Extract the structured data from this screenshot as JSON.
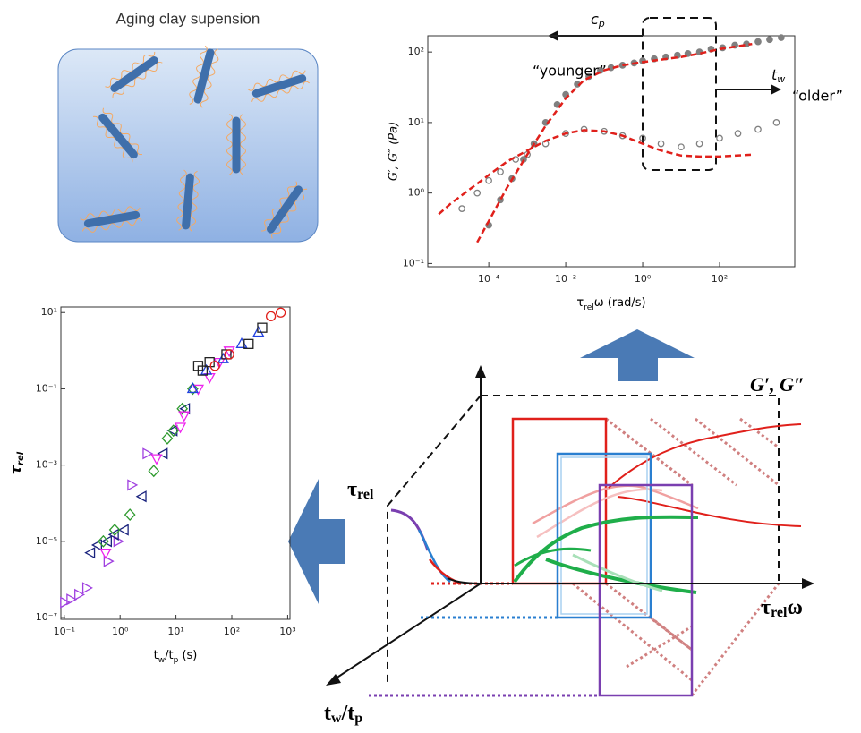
{
  "illustration": {
    "title": "Aging clay supension"
  },
  "chart_data": [
    {
      "type": "scatter",
      "log_x": true,
      "log_y": true,
      "xlim": [
        2.6e-06,
        9000
      ],
      "ylim": [
        0.09,
        170
      ],
      "xticks": [
        {
          "value": 0.0001,
          "label": "10⁻⁴"
        },
        {
          "value": 0.01,
          "label": "10⁻²"
        },
        {
          "value": 1,
          "label": "10⁰"
        },
        {
          "value": 100,
          "label": "10²"
        }
      ],
      "yticks": [
        {
          "value": 0.1,
          "label": "10⁻¹"
        },
        {
          "value": 1,
          "label": "10⁰"
        },
        {
          "value": 10,
          "label": "10¹"
        },
        {
          "value": 100,
          "label": "10²"
        }
      ],
      "x_label": [
        {
          "text": "τ"
        },
        {
          "sub": "rel"
        },
        {
          "text": "ω (rad/s)"
        }
      ],
      "y_label": "G′, G″ (Pa)",
      "annotations": {
        "concentration": [
          {
            "text": "c"
          },
          {
            "sub": "p"
          }
        ],
        "younger": "“younger”",
        "waiting_time": [
          {
            "text": "t"
          },
          {
            "sub": "w"
          }
        ],
        "older": "“older”"
      },
      "series": [
        {
          "color": "#808080",
          "marker": "circle-filled",
          "x": [
            0.0001,
            0.0002,
            0.0004,
            0.0008,
            0.0015,
            0.003,
            0.006,
            0.01,
            0.02,
            0.04,
            0.08,
            0.15,
            0.3,
            0.6,
            1,
            2,
            4,
            8,
            15,
            30,
            60,
            120,
            250,
            500,
            1000,
            2000,
            4000
          ],
          "values": [
            0.35,
            0.8,
            1.6,
            3,
            5,
            10,
            18,
            25,
            35,
            45,
            55,
            60,
            65,
            70,
            75,
            80,
            85,
            90,
            95,
            100,
            110,
            115,
            125,
            130,
            140,
            150,
            160
          ]
        },
        {
          "color": "#808080",
          "marker": "circle-open",
          "x": [
            2e-05,
            5e-05,
            0.0001,
            0.0002,
            0.0005,
            0.001,
            0.003,
            0.01,
            0.03,
            0.1,
            0.3,
            1,
            3,
            10,
            30,
            100,
            300,
            1000,
            3000
          ],
          "values": [
            0.6,
            1,
            1.5,
            2,
            3,
            3.5,
            5,
            7,
            8,
            7.5,
            6.5,
            6,
            5,
            4.5,
            5,
            6,
            7,
            8,
            10
          ]
        },
        {
          "color": "#e0201b",
          "line_style": "dashed",
          "x": [
            5e-05,
            0.0001,
            0.0003,
            0.001,
            0.003,
            0.01,
            0.03,
            0.1,
            0.3,
            1,
            3,
            10,
            30,
            100,
            700
          ],
          "values": [
            0.2,
            0.4,
            1.2,
            3.5,
            9,
            22,
            40,
            55,
            65,
            72,
            78,
            85,
            95,
            110,
            130
          ]
        },
        {
          "color": "#e0201b",
          "line_style": "dashed",
          "x": [
            5e-06,
            1e-05,
            3e-05,
            0.0001,
            0.0003,
            0.001,
            0.003,
            0.01,
            0.03,
            0.1,
            0.3,
            1,
            3,
            10,
            30,
            100,
            700
          ],
          "values": [
            0.5,
            0.7,
            1.1,
            1.8,
            2.8,
            4,
            5.5,
            7,
            7.8,
            7.5,
            6.5,
            5,
            4,
            3.4,
            3.3,
            3.3,
            3.5
          ]
        }
      ]
    },
    {
      "type": "scatter",
      "log_x": true,
      "log_y": true,
      "xlim": [
        0.087,
        1100
      ],
      "ylim": [
        9e-08,
        14
      ],
      "xticks": [
        {
          "value": 0.1,
          "label": "10⁻¹"
        },
        {
          "value": 1,
          "label": "10⁰"
        },
        {
          "value": 10,
          "label": "10¹"
        },
        {
          "value": 100,
          "label": "10²"
        },
        {
          "value": 1000,
          "label": "10³"
        }
      ],
      "yticks": [
        {
          "value": 1e-07,
          "label": "10⁻⁷"
        },
        {
          "value": 1e-05,
          "label": "10⁻⁵"
        },
        {
          "value": 0.001,
          "label": "10⁻³"
        },
        {
          "value": 0.1,
          "label": "10⁻¹"
        },
        {
          "value": 10,
          "label": "10¹"
        }
      ],
      "x_label": [
        {
          "text": "t"
        },
        {
          "sub": "w"
        },
        {
          "text": "/t"
        },
        {
          "sub": "p"
        },
        {
          "text": " (s)"
        }
      ],
      "y_label": [
        {
          "text": "τ"
        },
        {
          "sub": "rel"
        }
      ],
      "series": [
        {
          "color": "#a040e0",
          "marker": "triangle-right",
          "x": [
            0.1,
            0.13,
            0.18,
            0.25,
            0.6,
            0.9,
            1.6,
            3
          ],
          "values": [
            2.5e-07,
            3e-07,
            4e-07,
            6e-07,
            3e-06,
            1e-05,
            0.0003,
            0.002
          ]
        },
        {
          "color": "#1a237e",
          "marker": "triangle-left",
          "x": [
            0.3,
            0.4,
            0.6,
            0.8,
            1.2,
            2.5,
            6,
            9,
            15
          ],
          "values": [
            5e-06,
            8e-06,
            1e-05,
            1.5e-05,
            2e-05,
            0.00015,
            0.002,
            0.008,
            0.03
          ]
        },
        {
          "color": "#2e9a2e",
          "marker": "diamond",
          "x": [
            0.5,
            0.8,
            1.5,
            4,
            7,
            9,
            13,
            20
          ],
          "values": [
            1e-05,
            2e-05,
            5e-05,
            0.0007,
            0.005,
            0.008,
            0.03,
            0.1
          ]
        },
        {
          "color": "#ee22ee",
          "marker": "triangle-down",
          "x": [
            0.55,
            4.5,
            12,
            14,
            25,
            40,
            60,
            90
          ],
          "values": [
            5e-06,
            0.0015,
            0.01,
            0.02,
            0.1,
            0.2,
            0.5,
            1
          ]
        },
        {
          "color": "#2040e0",
          "marker": "triangle-up",
          "x": [
            20,
            35,
            70,
            150,
            300
          ],
          "values": [
            0.1,
            0.3,
            0.6,
            1.5,
            3
          ]
        },
        {
          "color": "#222222",
          "marker": "square",
          "x": [
            25,
            30,
            40,
            80,
            200,
            350
          ],
          "values": [
            0.4,
            0.3,
            0.5,
            0.8,
            1.5,
            4
          ]
        },
        {
          "color": "#e0201b",
          "marker": "circle-open",
          "x": [
            50,
            90,
            500,
            750
          ],
          "values": [
            0.4,
            0.8,
            8,
            10
          ]
        }
      ]
    }
  ],
  "diagram": {
    "modulus_axis": [
      {
        "text": "G′, G″"
      }
    ],
    "tau_axis": [
      {
        "text": "τ"
      },
      {
        "sub": "rel"
      }
    ],
    "frequency_axis": [
      {
        "text": "τ"
      },
      {
        "sub": "rel"
      },
      {
        "text": "ω"
      }
    ],
    "age_axis": [
      {
        "text": "t"
      },
      {
        "sub": "w"
      },
      {
        "text": "/t"
      },
      {
        "sub": "p"
      }
    ]
  }
}
